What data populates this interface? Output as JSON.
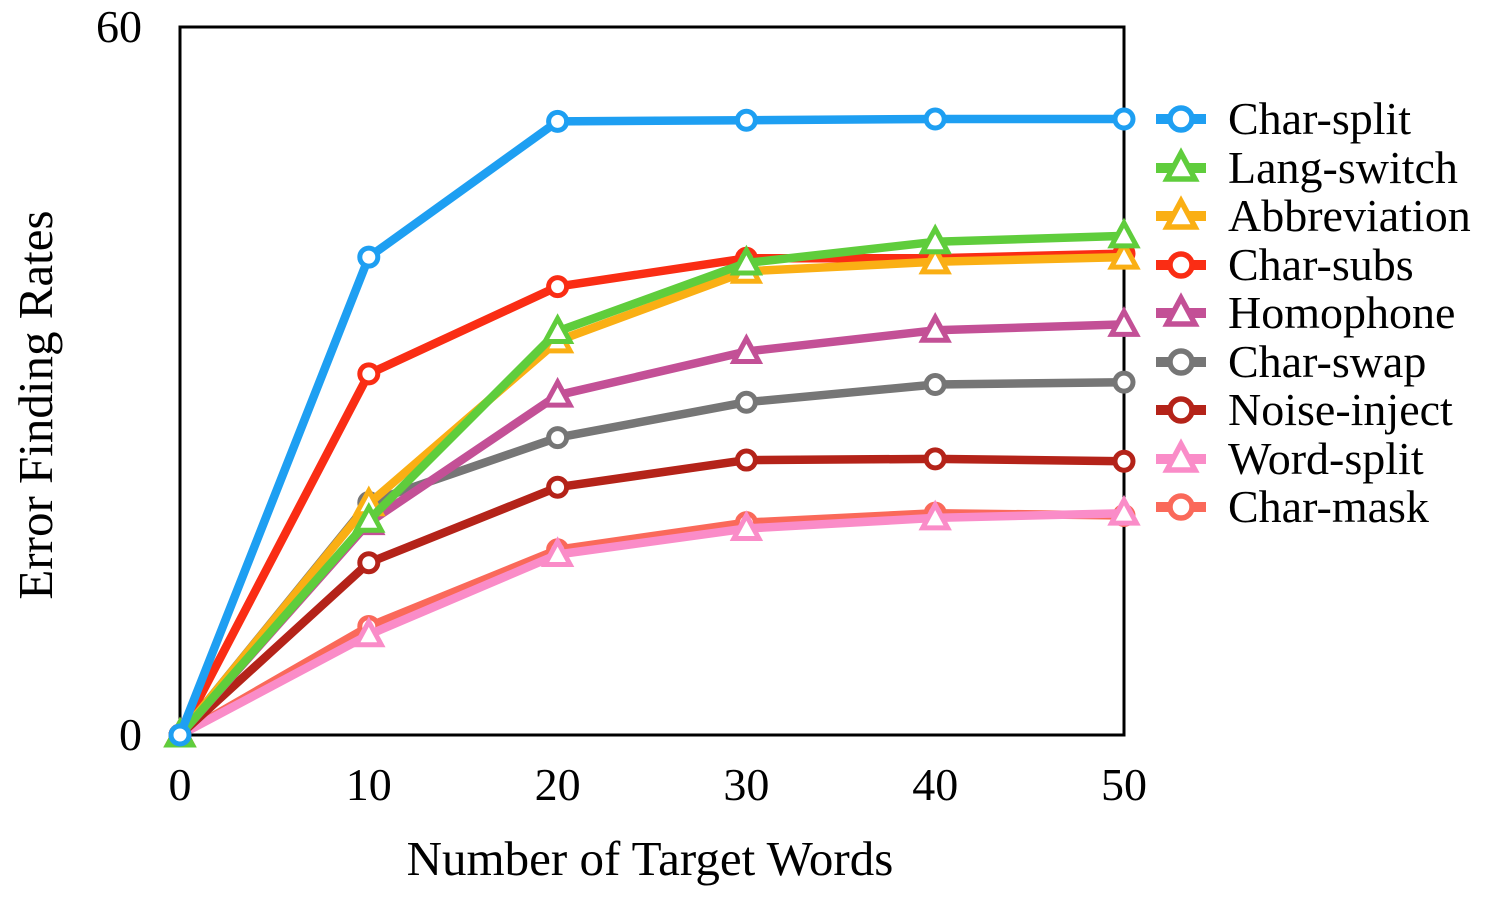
{
  "chart_data": {
    "type": "line",
    "title": "",
    "xlabel": "Number of Target Words",
    "ylabel": "Error Finding Rates",
    "x": [
      0,
      10,
      20,
      30,
      40,
      50
    ],
    "xtick_labels": [
      "0",
      "10",
      "20",
      "30",
      "40",
      "50"
    ],
    "ytick_labels": [
      "0",
      "60"
    ],
    "xlim": [
      0,
      50
    ],
    "ylim": [
      0,
      60
    ],
    "grid": false,
    "frame": true,
    "legend_position": "right",
    "axis_color": "#000000",
    "series": [
      {
        "name": "Char-split",
        "marker": "circle",
        "color": "#1E9FF2",
        "values": [
          0,
          40.5,
          52.0,
          52.1,
          52.2,
          52.2
        ]
      },
      {
        "name": "Lang-switch",
        "marker": "triangle",
        "color": "#5FCD3C",
        "values": [
          0,
          18.2,
          34.2,
          40.0,
          41.8,
          42.3
        ]
      },
      {
        "name": "Abbreviation",
        "marker": "triangle",
        "color": "#FAAF14",
        "values": [
          0,
          19.6,
          33.4,
          39.3,
          40.1,
          40.5
        ]
      },
      {
        "name": "Char-subs",
        "marker": "circle",
        "color": "#FA2D14",
        "values": [
          0,
          30.6,
          38.0,
          40.4,
          40.4,
          40.8
        ]
      },
      {
        "name": "Homophone",
        "marker": "triangle",
        "color": "#C35096",
        "values": [
          0,
          18.0,
          28.8,
          32.5,
          34.3,
          34.8
        ]
      },
      {
        "name": "Char-swap",
        "marker": "circle",
        "color": "#767676",
        "values": [
          0,
          19.7,
          25.2,
          28.2,
          29.7,
          29.9
        ]
      },
      {
        "name": "Noise-inject",
        "marker": "circle",
        "color": "#B42319",
        "values": [
          0,
          14.6,
          21.0,
          23.3,
          23.4,
          23.2
        ]
      },
      {
        "name": "Word-split",
        "marker": "triangle",
        "color": "#FA8CC8",
        "values": [
          0,
          8.5,
          15.3,
          17.5,
          18.4,
          18.8
        ]
      },
      {
        "name": "Char-mask",
        "marker": "circle",
        "color": "#FA695A",
        "values": [
          0,
          9.2,
          15.7,
          18.0,
          18.8,
          18.6
        ]
      }
    ],
    "draw_order": [
      "Char-mask",
      "Word-split",
      "Noise-inject",
      "Char-swap",
      "Homophone",
      "Char-subs",
      "Abbreviation",
      "Lang-switch",
      "Char-split"
    ]
  }
}
